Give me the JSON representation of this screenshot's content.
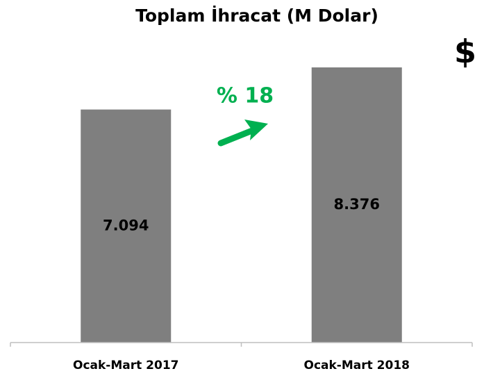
{
  "chart_data": {
    "type": "bar",
    "title": "Toplam İhracat (M Dolar)",
    "categories": [
      "Ocak-Mart 2017",
      "Ocak-Mart 2018"
    ],
    "values": [
      7094,
      8376
    ],
    "value_labels": [
      "7.094",
      "8.376"
    ],
    "color": "#7f7f7f",
    "annotations": [
      "% 18",
      "$"
    ]
  }
}
